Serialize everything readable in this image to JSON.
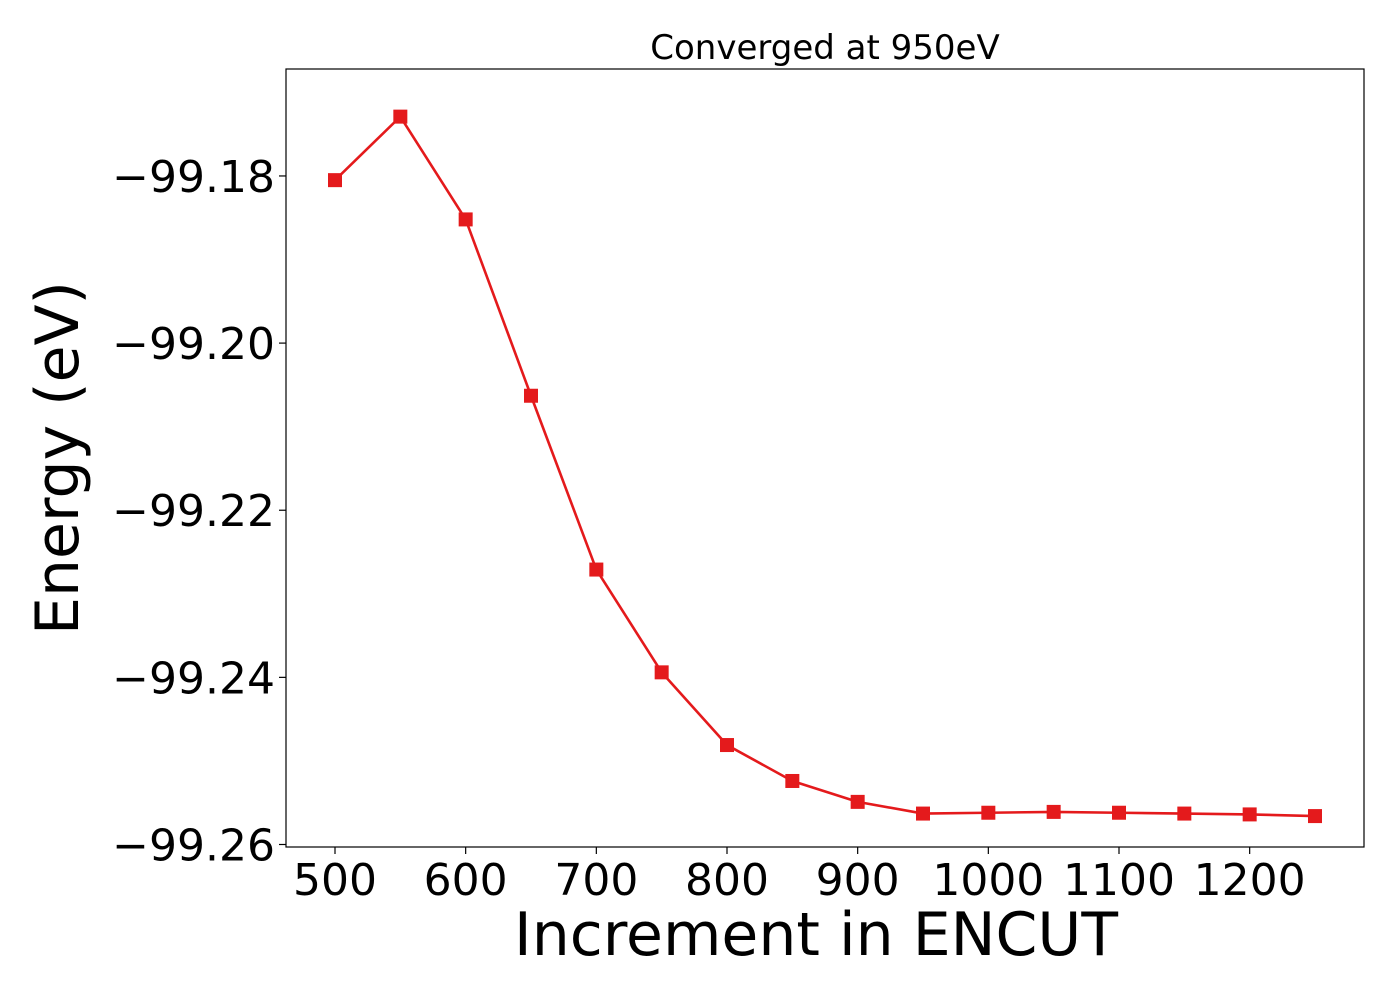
{
  "chart_data": {
    "type": "line",
    "title": "Converged at 950eV",
    "xlabel": "Increment in ENCUT",
    "ylabel": "Energy (eV)",
    "xlim": [
      462.5,
      1287.5
    ],
    "ylim": [
      -99.2603,
      -99.1672
    ],
    "x_ticks": [
      500,
      600,
      700,
      800,
      900,
      1000,
      1100,
      1200
    ],
    "x_tick_labels": [
      "500",
      "600",
      "700",
      "800",
      "900",
      "1000",
      "1100",
      "1200"
    ],
    "y_ticks": [
      -99.18,
      -99.2,
      -99.22,
      -99.24,
      -99.26
    ],
    "y_tick_labels": [
      "−99.18",
      "−99.20",
      "−99.22",
      "−99.24",
      "−99.26"
    ],
    "grid": false,
    "legend": "none",
    "series": [
      {
        "color": "#e41a1c",
        "marker": "square",
        "x": [
          500,
          550,
          600,
          650,
          700,
          750,
          800,
          850,
          900,
          950,
          1000,
          1050,
          1100,
          1150,
          1200,
          1250
        ],
        "y": [
          -99.1805,
          -99.1729,
          -99.1852,
          -99.2063,
          -99.2271,
          -99.2394,
          -99.2481,
          -99.2524,
          -99.2549,
          -99.2563,
          -99.2562,
          -99.2561,
          -99.2562,
          -99.2563,
          -99.2564,
          -99.2566
        ]
      }
    ]
  }
}
